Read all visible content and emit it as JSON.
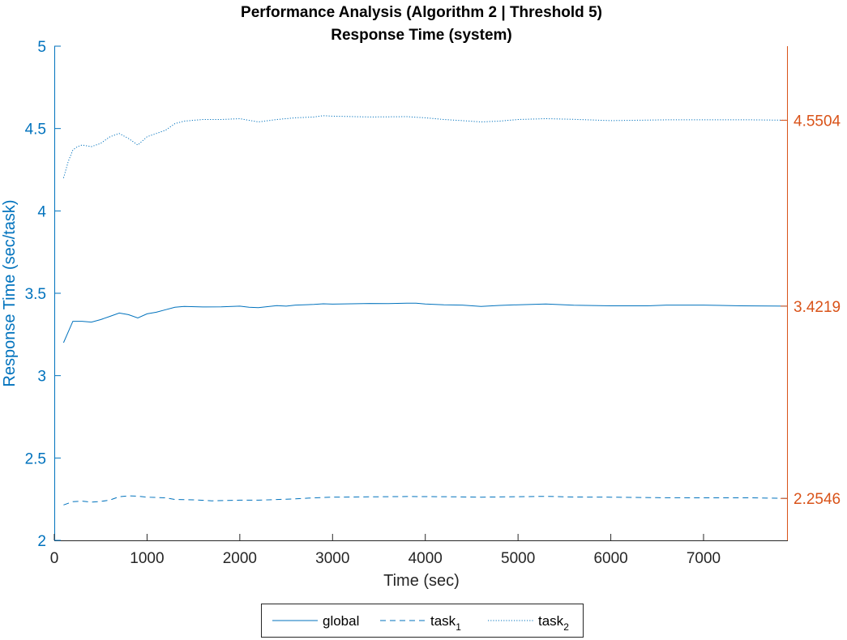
{
  "chart_data": {
    "type": "line",
    "title": "Performance Analysis (Algorithm 2 | Threshold 5)",
    "subtitle": "Response Time (system)",
    "xlabel": "Time (sec)",
    "ylabel": "Response Time (sec/task)",
    "xlim": [
      0,
      7900
    ],
    "ylim": [
      2,
      5
    ],
    "x_ticks": [
      0,
      1000,
      2000,
      3000,
      4000,
      5000,
      6000,
      7000
    ],
    "y_ticks": [
      2,
      2.5,
      3,
      3.5,
      4,
      4.5,
      5
    ],
    "y_tick_labels": [
      "2",
      "2.5",
      "3",
      "3.5",
      "4",
      "4.5",
      "5"
    ],
    "right_axis_labels": [
      {
        "value": 4.5504,
        "label": "4.5504"
      },
      {
        "value": 3.4219,
        "label": "3.4219"
      },
      {
        "value": 2.2546,
        "label": "2.2546"
      }
    ],
    "grid": false,
    "legend_position": "bottom-outside",
    "colors": {
      "series": "#0072BD",
      "right_axis": "#D95319",
      "axis": "#262626"
    },
    "series": [
      {
        "name": "global",
        "name_sub": "",
        "style": "solid",
        "x": [
          100,
          200,
          300,
          400,
          500,
          600,
          700,
          800,
          900,
          1000,
          1100,
          1200,
          1300,
          1400,
          1600,
          1800,
          2000,
          2100,
          2200,
          2400,
          2500,
          2600,
          2800,
          2900,
          3000,
          3200,
          3400,
          3600,
          3800,
          3900,
          4000,
          4200,
          4400,
          4600,
          4800,
          5000,
          5300,
          5600,
          6000,
          6400,
          6600,
          7000,
          7400,
          7900
        ],
        "y": [
          3.2,
          3.33,
          3.33,
          3.325,
          3.34,
          3.36,
          3.38,
          3.37,
          3.35,
          3.375,
          3.385,
          3.4,
          3.415,
          3.42,
          3.417,
          3.418,
          3.422,
          3.415,
          3.413,
          3.425,
          3.422,
          3.428,
          3.432,
          3.436,
          3.434,
          3.436,
          3.438,
          3.437,
          3.44,
          3.44,
          3.435,
          3.43,
          3.428,
          3.42,
          3.426,
          3.43,
          3.435,
          3.427,
          3.424,
          3.424,
          3.428,
          3.428,
          3.424,
          3.4219
        ]
      },
      {
        "name": "task",
        "name_sub": "1",
        "style": "dashed",
        "x": [
          100,
          200,
          300,
          400,
          500,
          600,
          700,
          800,
          900,
          1000,
          1200,
          1300,
          1500,
          1700,
          2000,
          2200,
          2400,
          2600,
          2800,
          3000,
          3400,
          3800,
          4200,
          4600,
          5000,
          5300,
          5600,
          6000,
          6500,
          7000,
          7500,
          7900
        ],
        "y": [
          2.215,
          2.235,
          2.238,
          2.232,
          2.236,
          2.245,
          2.265,
          2.27,
          2.268,
          2.262,
          2.258,
          2.248,
          2.246,
          2.24,
          2.244,
          2.244,
          2.248,
          2.252,
          2.258,
          2.262,
          2.264,
          2.266,
          2.265,
          2.262,
          2.265,
          2.267,
          2.263,
          2.262,
          2.259,
          2.258,
          2.258,
          2.2546
        ]
      },
      {
        "name": "task",
        "name_sub": "2",
        "style": "dotted",
        "x": [
          100,
          150,
          200,
          250,
          300,
          400,
          500,
          600,
          700,
          800,
          900,
          1000,
          1100,
          1200,
          1300,
          1400,
          1600,
          1800,
          2000,
          2200,
          2400,
          2600,
          2800,
          2900,
          3000,
          3400,
          3800,
          4000,
          4200,
          4400,
          4600,
          4800,
          5000,
          5300,
          5600,
          6000,
          6600,
          7000,
          7500,
          7900
        ],
        "y": [
          4.2,
          4.3,
          4.37,
          4.39,
          4.4,
          4.39,
          4.41,
          4.45,
          4.47,
          4.44,
          4.4,
          4.45,
          4.47,
          4.49,
          4.53,
          4.545,
          4.555,
          4.555,
          4.56,
          4.54,
          4.555,
          4.565,
          4.57,
          4.578,
          4.575,
          4.57,
          4.572,
          4.565,
          4.555,
          4.548,
          4.54,
          4.545,
          4.555,
          4.56,
          4.556,
          4.548,
          4.553,
          4.553,
          4.553,
          4.5504
        ]
      }
    ]
  }
}
